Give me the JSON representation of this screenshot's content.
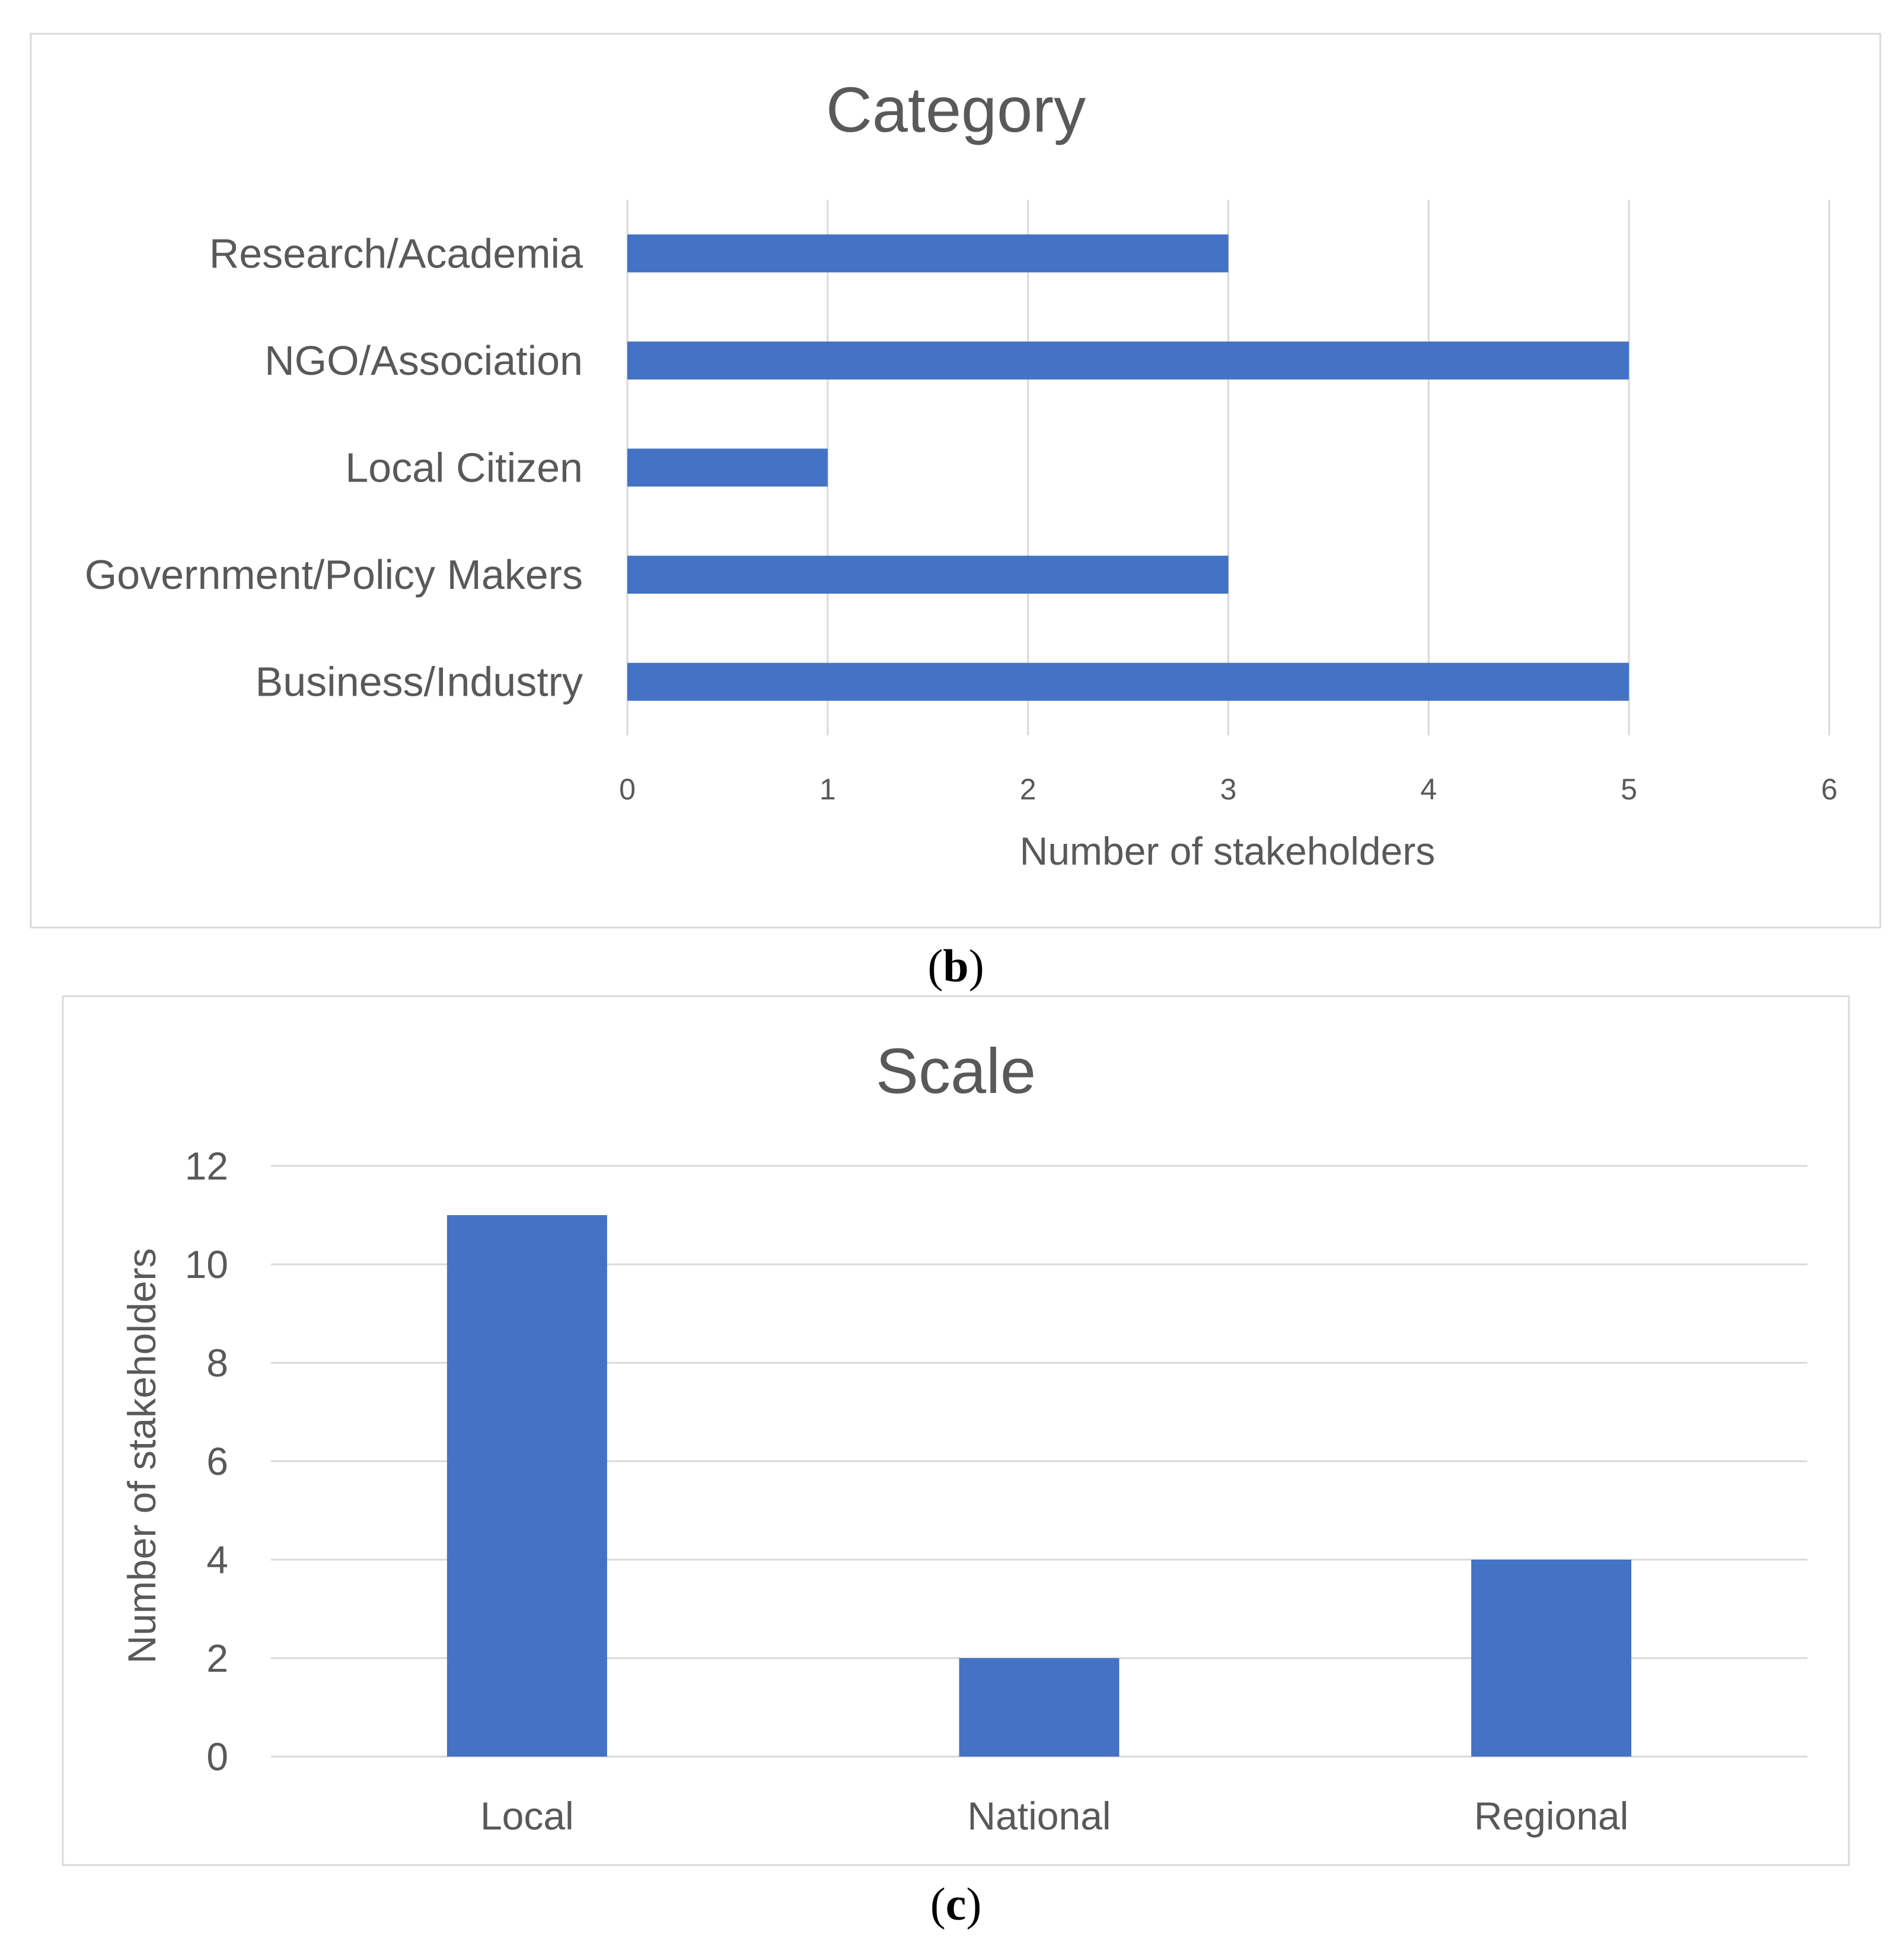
{
  "chart_data": [
    {
      "type": "bar",
      "orientation": "horizontal",
      "title": "Category",
      "categories": [
        "Research/Academia",
        "NGO/Association",
        "Local Citizen",
        "Government/Policy Makers",
        "Business/Industry"
      ],
      "values": [
        3,
        5,
        1,
        3,
        5
      ],
      "xlabel": "Number of stakeholders",
      "ylabel": "",
      "xlim": [
        0,
        6
      ],
      "ticks": [
        0,
        1,
        2,
        3,
        4,
        5,
        6
      ],
      "grid": true,
      "color": "#4472c4",
      "caption": {
        "open": "(",
        "letter": "b",
        "close": ")"
      }
    },
    {
      "type": "bar",
      "orientation": "vertical",
      "title": "Scale",
      "categories": [
        "Local",
        "National",
        "Regional"
      ],
      "values": [
        11,
        2,
        4
      ],
      "xlabel": "",
      "ylabel": "Number of stakeholders",
      "ylim": [
        0,
        12
      ],
      "ticks": [
        0,
        2,
        4,
        6,
        8,
        10,
        12
      ],
      "grid": true,
      "color": "#4472c4",
      "caption": {
        "open": "(",
        "letter": "c",
        "close": ")"
      }
    }
  ]
}
